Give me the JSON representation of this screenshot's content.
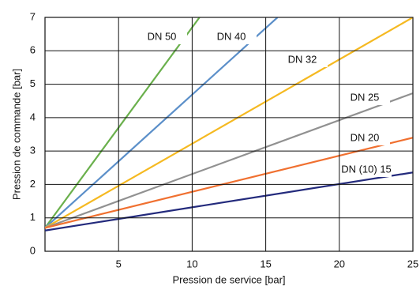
{
  "chart_data": {
    "type": "line",
    "x_label": "Pression de service [bar]",
    "y_label": "Pression de commande [bar]",
    "xlim": [
      0,
      25
    ],
    "xticks": [
      5,
      10,
      15,
      20,
      25
    ],
    "ylim": [
      0,
      7
    ],
    "yticks": [
      0,
      1,
      2,
      3,
      4,
      5,
      6,
      7
    ],
    "grid": true,
    "series": [
      {
        "name": "DN 50",
        "color": "#6ab04c",
        "x": [
          0,
          10.5
        ],
        "values": [
          0.7,
          7
        ]
      },
      {
        "name": "DN 40",
        "color": "#5b8fc9",
        "x": [
          0,
          15.8
        ],
        "values": [
          0.7,
          7
        ]
      },
      {
        "name": "DN 32",
        "color": "#f5b921",
        "x": [
          0,
          25
        ],
        "values": [
          0.7,
          7
        ]
      },
      {
        "name": "DN 25",
        "color": "#919191",
        "x": [
          0,
          25
        ],
        "values": [
          0.7,
          4.73
        ]
      },
      {
        "name": "DN 20",
        "color": "#f07030",
        "x": [
          0,
          25
        ],
        "values": [
          0.7,
          3.4
        ]
      },
      {
        "name": "DN (10) 15",
        "color": "#232a7c",
        "x": [
          0,
          25
        ],
        "values": [
          0.62,
          2.36
        ]
      }
    ]
  }
}
